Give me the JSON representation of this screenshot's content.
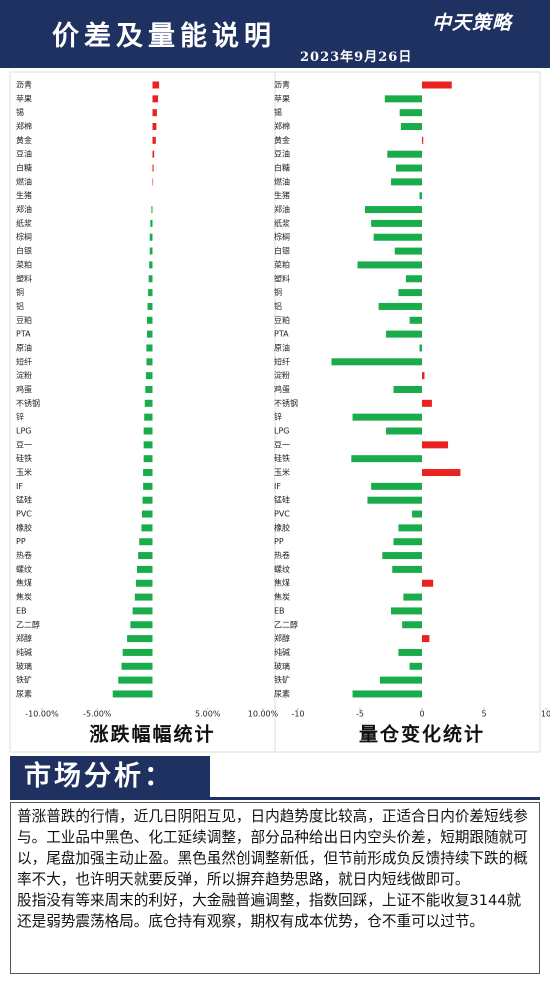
{
  "header": {
    "title": "价差及量能说明",
    "date": "2023年9月26日",
    "logo": "中天策略"
  },
  "chart_data": [
    {
      "type": "bar",
      "orientation": "horizontal",
      "title": "涨跌幅幅统计",
      "categories": [
        "沥青",
        "苹果",
        "锡",
        "郑棉",
        "黄金",
        "豆油",
        "白糖",
        "燃油",
        "生猪",
        "郑油",
        "纸浆",
        "棕榈",
        "白银",
        "菜粕",
        "塑料",
        "铜",
        "铝",
        "豆粕",
        "PTA",
        "原油",
        "短纤",
        "淀粉",
        "鸡蛋",
        "不锈钢",
        "锌",
        "LPG",
        "豆一",
        "硅铁",
        "玉米",
        "IF",
        "锰硅",
        "PVC",
        "橡胶",
        "PP",
        "热卷",
        "螺纹",
        "焦煤",
        "焦炭",
        "EB",
        "乙二醇",
        "郑醇",
        "纯碱",
        "玻璃",
        "铁矿",
        "尿素"
      ],
      "values": [
        0.6,
        0.5,
        0.4,
        0.35,
        0.3,
        0.15,
        0.1,
        0.05,
        0,
        -0.1,
        -0.2,
        -0.25,
        -0.25,
        -0.3,
        -0.35,
        -0.4,
        -0.45,
        -0.5,
        -0.5,
        -0.55,
        -0.55,
        -0.6,
        -0.65,
        -0.7,
        -0.75,
        -0.8,
        -0.8,
        -0.8,
        -0.85,
        -0.85,
        -0.9,
        -0.95,
        -1.0,
        -1.2,
        -1.3,
        -1.4,
        -1.5,
        -1.6,
        -1.8,
        -2.0,
        -2.3,
        -2.7,
        -2.8,
        -3.1,
        -3.6
      ],
      "xlim": [
        -10,
        10
      ],
      "xticks": [
        {
          "value": -10,
          "label": "-10.00%"
        },
        {
          "value": -5,
          "label": "-5.00%"
        },
        {
          "value": 5,
          "label": "5.00%"
        },
        {
          "value": 10,
          "label": "10.00%"
        }
      ],
      "positive_color": "#e8231f",
      "negative_color": "#1aab4b"
    },
    {
      "type": "bar",
      "orientation": "horizontal",
      "title": "量仓变化统计",
      "categories": [
        "沥青",
        "苹果",
        "锡",
        "郑棉",
        "黄金",
        "豆油",
        "白糖",
        "燃油",
        "生猪",
        "郑油",
        "纸浆",
        "棕榈",
        "白银",
        "菜粕",
        "塑料",
        "铜",
        "铝",
        "豆粕",
        "PTA",
        "原油",
        "短纤",
        "淀粉",
        "鸡蛋",
        "不锈钢",
        "锌",
        "LPG",
        "豆一",
        "硅铁",
        "玉米",
        "IF",
        "锰硅",
        "PVC",
        "橡胶",
        "PP",
        "热卷",
        "螺纹",
        "焦煤",
        "焦炭",
        "EB",
        "乙二醇",
        "郑醇",
        "纯碱",
        "玻璃",
        "铁矿",
        "尿素"
      ],
      "values": [
        2.4,
        -3.0,
        -1.8,
        -1.7,
        0.1,
        -2.8,
        -2.1,
        -2.5,
        -0.2,
        -4.6,
        -4.1,
        -3.9,
        -2.2,
        -5.2,
        -1.3,
        -1.9,
        -3.5,
        -1.0,
        -2.9,
        -0.2,
        -7.3,
        0.2,
        -2.3,
        0.8,
        -5.6,
        -2.9,
        2.1,
        -5.7,
        3.1,
        -4.1,
        -4.4,
        -0.8,
        -1.9,
        -2.3,
        -3.2,
        -2.4,
        0.9,
        -1.5,
        -2.5,
        -1.6,
        0.6,
        -1.9,
        -1.0,
        -3.4,
        -5.6
      ],
      "xlim": [
        -10,
        10
      ],
      "xticks": [
        -10,
        -5,
        0,
        5,
        10
      ],
      "positive_color": "#e8231f",
      "negative_color": "#1aab4b"
    }
  ],
  "section": {
    "title": "市场分析："
  },
  "analysis": {
    "paragraphs": [
      "普涨普跌的行情，近几日阴阳互见，日内趋势度比较高，正适合日内价差短线参与。工业品中黑色、化工延续调整，部分品种给出日内空头价差，短期跟随就可以，尾盘加强主动止盈。黑色虽然创调整新低，但节前形成负反馈持续下跌的概率不大，也许明天就要反弹，所以摒弃趋势思路，就日内短线做即可。",
      "股指没有等来周末的利好，大金融普遍调整，指数回踩，上证不能收复3144就还是弱势震荡格局。底仓持有观察，期权有成本优势，仓不重可以过节。"
    ]
  }
}
